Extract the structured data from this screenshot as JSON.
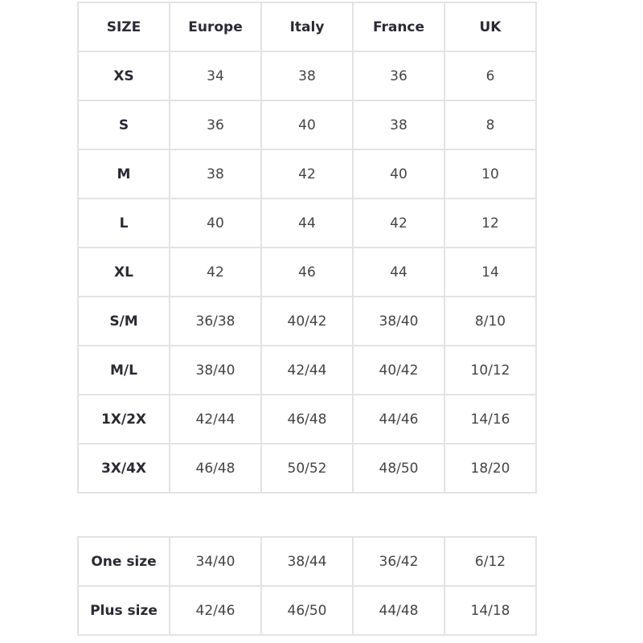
{
  "headers": [
    "SIZE",
    "Europe",
    "Italy",
    "France",
    "UK"
  ],
  "rows": [
    [
      "XS",
      "34",
      "38",
      "36",
      "6"
    ],
    [
      "S",
      "36",
      "40",
      "38",
      "8"
    ],
    [
      "M",
      "38",
      "42",
      "40",
      "10"
    ],
    [
      "L",
      "40",
      "44",
      "42",
      "12"
    ],
    [
      "XL",
      "42",
      "46",
      "44",
      "14"
    ],
    [
      "S/M",
      "36/38",
      "40/42",
      "38/40",
      "8/10"
    ],
    [
      "M/L",
      "38/40",
      "42/44",
      "40/42",
      "10/12"
    ],
    [
      "1X/2X",
      "42/44",
      "46/48",
      "44/46",
      "14/16"
    ],
    [
      "3X/4X",
      "46/48",
      "50/52",
      "48/50",
      "18/20"
    ]
  ],
  "extra_rows": [
    [
      "One size",
      "34/40",
      "38/44",
      "36/42",
      "6/12"
    ],
    [
      "Plus size",
      "42/46",
      "46/50",
      "44/48",
      "14/18"
    ]
  ]
}
